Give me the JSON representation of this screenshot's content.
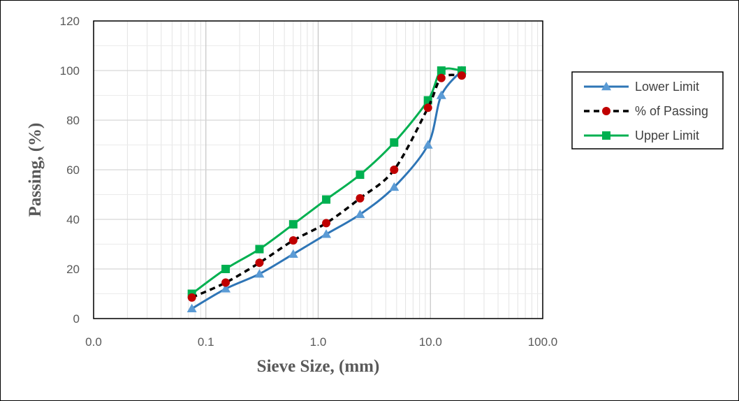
{
  "chart_data": {
    "type": "line",
    "title": "",
    "xlabel": "Sieve Size, (mm)",
    "ylabel": "Passing, (%)",
    "x_scale": "log",
    "xlim": [
      0.01,
      100
    ],
    "ylim": [
      0,
      120
    ],
    "x_tick_values": [
      0.01,
      0.1,
      1,
      10,
      100
    ],
    "x_tick_labels": [
      "0.0",
      "0.1",
      "1.0",
      "10.0",
      "100.0"
    ],
    "y_ticks": [
      0,
      20,
      40,
      60,
      80,
      100,
      120
    ],
    "grid": true,
    "legend_position": "right",
    "series": [
      {
        "name": "Lower Limit",
        "color": "#2E75B6",
        "marker_color": "#5B9BD5",
        "marker": "triangle",
        "line_style": "solid",
        "x": [
          0.075,
          0.15,
          0.3,
          0.6,
          1.18,
          2.36,
          4.75,
          9.5,
          12.5,
          19
        ],
        "y": [
          4,
          12,
          18,
          26,
          34,
          42,
          53,
          70,
          90,
          100
        ]
      },
      {
        "name": "% of Passing",
        "color": "#000000",
        "marker_color": "#C00000",
        "marker": "circle",
        "line_style": "dashed",
        "x": [
          0.075,
          0.15,
          0.3,
          0.6,
          1.18,
          2.36,
          4.75,
          9.5,
          12.5,
          19
        ],
        "y": [
          8.5,
          14.5,
          22.5,
          31.5,
          38.5,
          48.5,
          60,
          85,
          97,
          98
        ]
      },
      {
        "name": "Upper Limit",
        "color": "#00B050",
        "marker_color": "#00B050",
        "marker": "square",
        "line_style": "solid",
        "x": [
          0.075,
          0.15,
          0.3,
          0.6,
          1.18,
          2.36,
          4.75,
          9.5,
          12.5,
          19
        ],
        "y": [
          10,
          20,
          28,
          38,
          48,
          58,
          71,
          88,
          100,
          100
        ]
      }
    ]
  }
}
